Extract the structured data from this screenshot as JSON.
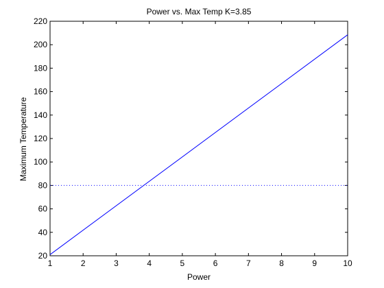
{
  "chart_data": {
    "type": "line",
    "title": "Power vs. Max Temp K=3.85",
    "xlabel": "Power",
    "ylabel": "Maximum Temperature",
    "xlim": [
      1,
      10
    ],
    "ylim": [
      20,
      220
    ],
    "xticks": [
      1,
      2,
      3,
      4,
      5,
      6,
      7,
      8,
      9,
      10
    ],
    "yticks": [
      20,
      40,
      60,
      80,
      100,
      120,
      140,
      160,
      180,
      200,
      220
    ],
    "grid": false,
    "series": [
      {
        "x": [
          1,
          10
        ],
        "y": [
          21.0,
          208.5
        ],
        "color": "#0000ff",
        "style": "solid"
      },
      {
        "x": [
          1,
          10
        ],
        "y": [
          80,
          80
        ],
        "color": "#0000ff",
        "style": "dotted"
      }
    ]
  }
}
